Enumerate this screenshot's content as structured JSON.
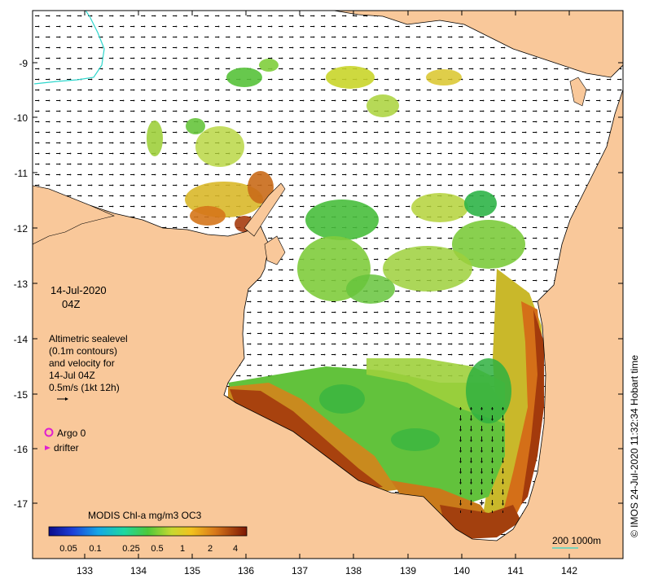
{
  "map": {
    "date": "14-Jul-2020",
    "time": "04Z",
    "legend_lines": [
      "Altimetric sealevel",
      "(0.1m contours)",
      "and velocity for",
      "14-Jul 04Z",
      "0.5m/s (1kt 12h)"
    ],
    "argo_label": "Argo 0",
    "drifter_label": "drifter",
    "colorbar_title": "MODIS Chl-a mg/m3 OC3",
    "colorbar_ticks": [
      "0.05",
      "0.1",
      "0.25",
      "0.5",
      "1",
      "2",
      "4"
    ],
    "depth_scale_label": "200  1000m",
    "credit": "© IMOS 24-Jul-2020 11:32:34 Hobart time",
    "y_ticks": [
      "-9",
      "-10",
      "-11",
      "-12",
      "-13",
      "-14",
      "-15",
      "-16",
      "-17"
    ],
    "x_ticks": [
      "133",
      "134",
      "135",
      "136",
      "137",
      "138",
      "139",
      "140",
      "141",
      "142"
    ],
    "colors": {
      "land": "#f9c89a",
      "ocean": "#ffffff",
      "argo": "#e01ed0",
      "drifter": "#e01ed0",
      "depth_contour": "#2ed6cc",
      "chl_low": "#1010a0",
      "chl_high": "#8a1c06"
    }
  }
}
